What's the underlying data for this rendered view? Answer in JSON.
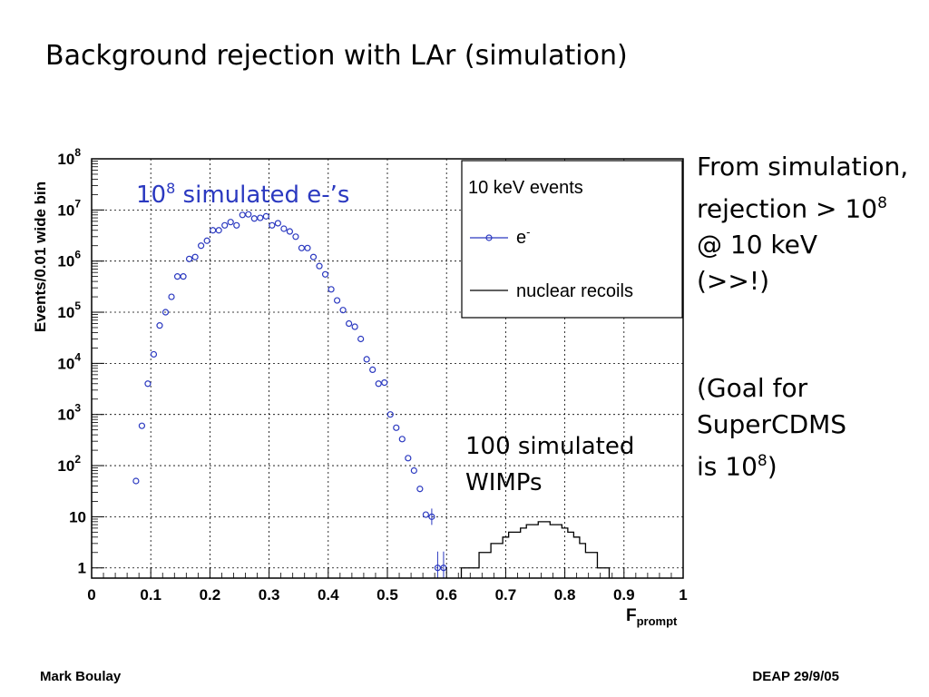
{
  "slide": {
    "title": "Background rejection with LAr (simulation)",
    "side_lines_1": [
      "From simulation,",
      "rejection > 10",
      "@ 10 keV",
      "(>>!)"
    ],
    "side_lines_2": [
      "(Goal for",
      "SuperCDMS",
      "is 10",
      ")"
    ],
    "sup": "8",
    "footer_left": "Mark Boulay",
    "footer_right": "DEAP 29/9/05"
  },
  "chart_data": {
    "type": "scatter",
    "ylabel": "Events/0.01 wide bin",
    "xlabel_main": "F",
    "xlabel_sub": "prompt",
    "xlim": [
      0,
      1
    ],
    "ylim_exponent": [
      -0.2,
      8
    ],
    "y_scale": "log",
    "x_ticks": [
      "0",
      "0.1",
      "0.2",
      "0.3",
      "0.4",
      "0.5",
      "0.6",
      "0.7",
      "0.8",
      "0.9",
      "1"
    ],
    "y_ticks": [
      {
        "base": "1",
        "exp": ""
      },
      {
        "base": "10",
        "exp": ""
      },
      {
        "base": "10",
        "exp": "2"
      },
      {
        "base": "10",
        "exp": "3"
      },
      {
        "base": "10",
        "exp": "4"
      },
      {
        "base": "10",
        "exp": "5"
      },
      {
        "base": "10",
        "exp": "6"
      },
      {
        "base": "10",
        "exp": "7"
      },
      {
        "base": "10",
        "exp": "8"
      }
    ],
    "grid": true,
    "legend": {
      "position": "top-right",
      "header": "10 keV  events",
      "entries": [
        {
          "label": "e",
          "sup": "-",
          "style": "markers"
        },
        {
          "label": "nuclear recoils",
          "style": "line"
        }
      ]
    },
    "annotations": [
      {
        "main": "10",
        "sup": "8",
        "rest": " simulated e-’s",
        "color": "#2b39c0"
      },
      {
        "lines": [
          "100 simulated",
          "WIMPs"
        ],
        "color": "#000000"
      }
    ],
    "series": [
      {
        "name": "e",
        "color": "#2b39c0",
        "x": [
          0.075,
          0.085,
          0.095,
          0.105,
          0.115,
          0.125,
          0.135,
          0.145,
          0.155,
          0.165,
          0.175,
          0.185,
          0.195,
          0.205,
          0.215,
          0.225,
          0.235,
          0.245,
          0.255,
          0.265,
          0.275,
          0.285,
          0.295,
          0.305,
          0.315,
          0.325,
          0.335,
          0.345,
          0.355,
          0.365,
          0.375,
          0.385,
          0.395,
          0.405,
          0.415,
          0.425,
          0.435,
          0.445,
          0.455,
          0.465,
          0.475,
          0.485,
          0.495,
          0.505,
          0.515,
          0.525,
          0.535,
          0.545,
          0.555,
          0.565,
          0.575,
          0.585,
          0.595
        ],
        "y": [
          50,
          600,
          4000,
          15000,
          55000,
          100000,
          200000,
          500000,
          500000,
          1100000,
          1200000,
          2000000,
          2500000,
          4000000,
          4000000,
          5000000,
          5800000,
          5000000,
          8000000,
          8200000,
          6800000,
          7000000,
          7500000,
          5000000,
          5500000,
          4300000,
          3800000,
          3000000,
          1800000,
          1800000,
          1200000,
          800000,
          550000,
          280000,
          170000,
          110000,
          60000,
          52000,
          30000,
          12000,
          7500,
          4000,
          4200,
          1000,
          550,
          330,
          140,
          80,
          35,
          11,
          10,
          1,
          1
        ]
      },
      {
        "name": "nuclear recoils",
        "color": "#000000",
        "bin_edges": [
          0.625,
          0.635,
          0.645,
          0.655,
          0.665,
          0.675,
          0.685,
          0.695,
          0.705,
          0.715,
          0.725,
          0.735,
          0.745,
          0.755,
          0.765,
          0.775,
          0.785,
          0.795,
          0.805,
          0.815,
          0.825,
          0.835,
          0.845,
          0.855,
          0.865,
          0.875
        ],
        "counts": [
          1,
          1,
          1,
          2,
          2,
          3,
          3,
          4,
          5,
          5,
          6,
          7,
          7,
          8,
          8,
          7,
          7,
          6,
          5,
          4,
          3,
          2,
          2,
          1,
          1
        ]
      }
    ]
  }
}
